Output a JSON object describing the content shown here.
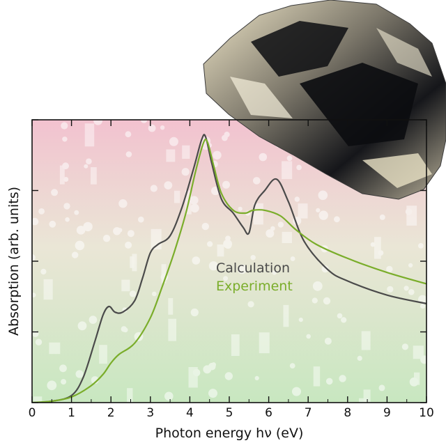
{
  "chart_data": {
    "type": "line",
    "xlabel": "Photon energy hν (eV)",
    "ylabel": "Absorption (arb. units)",
    "xlim": [
      0,
      10
    ],
    "ylim": [
      0,
      1
    ],
    "x_ticks": [
      "0",
      "1",
      "2",
      "3",
      "4",
      "5",
      "6",
      "7",
      "8",
      "9",
      "10"
    ],
    "y_tick_labels_shown": false,
    "grid": false,
    "legend_position": "center-right",
    "series": [
      {
        "name": "Calculation",
        "color": "#4a4a4a",
        "x": [
          0,
          0.5,
          1.0,
          1.3,
          1.6,
          1.8,
          1.95,
          2.1,
          2.3,
          2.6,
          2.8,
          3.0,
          3.2,
          3.5,
          3.8,
          4.1,
          4.3,
          4.4,
          4.55,
          4.8,
          5.1,
          5.35,
          5.5,
          5.65,
          5.9,
          6.2,
          6.5,
          6.9,
          7.5,
          8.0,
          9.0,
          10.0
        ],
        "y": [
          0.0,
          0.005,
          0.025,
          0.09,
          0.22,
          0.31,
          0.34,
          0.32,
          0.32,
          0.36,
          0.44,
          0.53,
          0.56,
          0.59,
          0.69,
          0.83,
          0.93,
          0.94,
          0.85,
          0.72,
          0.67,
          0.62,
          0.6,
          0.7,
          0.75,
          0.79,
          0.71,
          0.57,
          0.47,
          0.43,
          0.38,
          0.35
        ]
      },
      {
        "name": "Experiment",
        "color": "#7aad2a",
        "x": [
          0,
          0.5,
          1.0,
          1.5,
          1.8,
          2.0,
          2.2,
          2.6,
          3.0,
          3.3,
          3.6,
          3.9,
          4.15,
          4.35,
          4.45,
          4.6,
          4.8,
          5.1,
          5.4,
          5.6,
          5.9,
          6.3,
          6.7,
          7.2,
          8.0,
          9.0,
          10.0
        ],
        "y": [
          0.0,
          0.005,
          0.02,
          0.06,
          0.1,
          0.14,
          0.17,
          0.21,
          0.3,
          0.41,
          0.53,
          0.67,
          0.82,
          0.92,
          0.92,
          0.84,
          0.74,
          0.68,
          0.67,
          0.68,
          0.68,
          0.66,
          0.61,
          0.56,
          0.51,
          0.46,
          0.42
        ]
      }
    ]
  },
  "legend": {
    "items": [
      {
        "label": "Calculation",
        "color": "#4a4a4a"
      },
      {
        "label": "Experiment",
        "color": "#7aad2a"
      }
    ]
  }
}
